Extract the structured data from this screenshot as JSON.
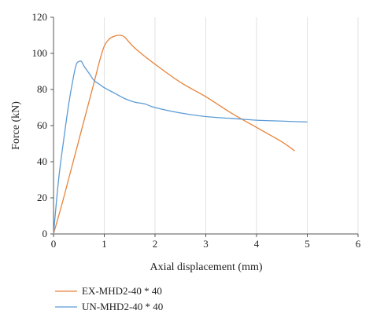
{
  "chart_data": {
    "type": "line",
    "xlabel": "Axial displacement (mm)",
    "ylabel": "Force (kN)",
    "xlim": [
      0,
      6
    ],
    "ylim": [
      0,
      120
    ],
    "xticks": [
      0,
      1,
      2,
      3,
      4,
      5,
      6
    ],
    "yticks": [
      0,
      20,
      40,
      60,
      80,
      100,
      120
    ],
    "grid": "vertical",
    "legend_position": "bottom-left",
    "series": [
      {
        "name": "EX-MHD2-40 * 40",
        "color": "#e8833a",
        "x": [
          0,
          0.2,
          0.5,
          0.8,
          0.9,
          1.0,
          1.1,
          1.2,
          1.3,
          1.4,
          1.6,
          2.0,
          2.5,
          3.0,
          3.5,
          4.0,
          4.5,
          4.75
        ],
        "y": [
          0,
          20,
          52,
          84,
          95,
          104,
          108,
          109.5,
          110,
          109,
          103,
          94,
          84,
          76,
          67,
          59,
          51,
          46
        ]
      },
      {
        "name": "UN-MHD2-40 * 40",
        "color": "#5b9bd5",
        "x": [
          0,
          0.1,
          0.2,
          0.3,
          0.4,
          0.45,
          0.5,
          0.55,
          0.6,
          0.7,
          0.8,
          0.9,
          1.0,
          1.2,
          1.4,
          1.6,
          1.8,
          2.0,
          2.5,
          3.0,
          3.5,
          4.0,
          4.5,
          5.0
        ],
        "y": [
          0,
          30,
          52,
          72,
          88,
          94,
          95.5,
          95.5,
          93,
          89,
          85,
          83,
          81,
          78,
          75,
          73,
          72,
          70,
          67,
          65,
          64,
          63,
          62.5,
          62
        ]
      }
    ]
  }
}
